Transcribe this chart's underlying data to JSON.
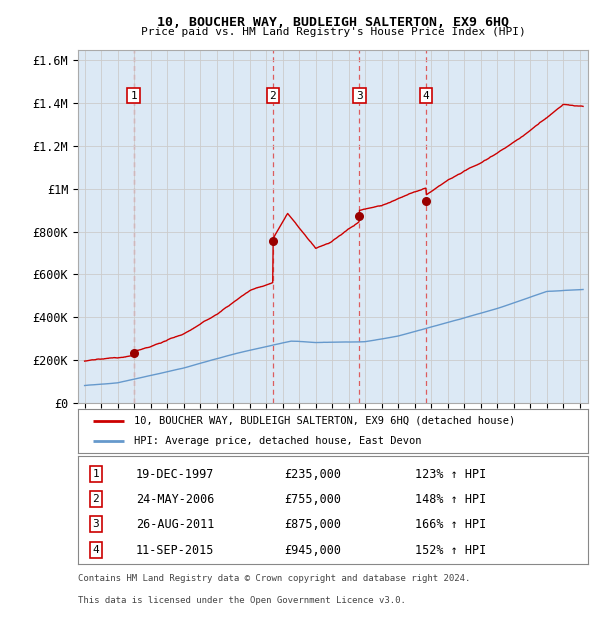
{
  "title": "10, BOUCHER WAY, BUDLEIGH SALTERTON, EX9 6HQ",
  "subtitle": "Price paid vs. HM Land Registry's House Price Index (HPI)",
  "plot_bg_color": "#dce9f5",
  "red_line_label": "10, BOUCHER WAY, BUDLEIGH SALTERTON, EX9 6HQ (detached house)",
  "blue_line_label": "HPI: Average price, detached house, East Devon",
  "footnote1": "Contains HM Land Registry data © Crown copyright and database right 2024.",
  "footnote2": "This data is licensed under the Open Government Licence v3.0.",
  "sales": [
    {
      "num": 1,
      "date_label": "19-DEC-1997",
      "price": 235000,
      "hpi_pct": "123%",
      "year": 1997.97
    },
    {
      "num": 2,
      "date_label": "24-MAY-2006",
      "price": 755000,
      "hpi_pct": "148%",
      "year": 2006.4
    },
    {
      "num": 3,
      "date_label": "26-AUG-2011",
      "price": 875000,
      "hpi_pct": "166%",
      "year": 2011.65
    },
    {
      "num": 4,
      "date_label": "11-SEP-2015",
      "price": 945000,
      "hpi_pct": "152%",
      "year": 2015.7
    }
  ],
  "ylim": [
    0,
    1650000
  ],
  "xlim_start": 1994.6,
  "xlim_end": 2025.5,
  "yticks": [
    0,
    200000,
    400000,
    600000,
    800000,
    1000000,
    1200000,
    1400000,
    1600000
  ],
  "ytick_labels": [
    "£0",
    "£200K",
    "£400K",
    "£600K",
    "£800K",
    "£1M",
    "£1.2M",
    "£1.4M",
    "£1.6M"
  ],
  "red_color": "#cc0000",
  "blue_color": "#6699cc",
  "dashed_color": "#dd4444",
  "grid_color": "#cccccc",
  "sale_dot_color": "#990000"
}
